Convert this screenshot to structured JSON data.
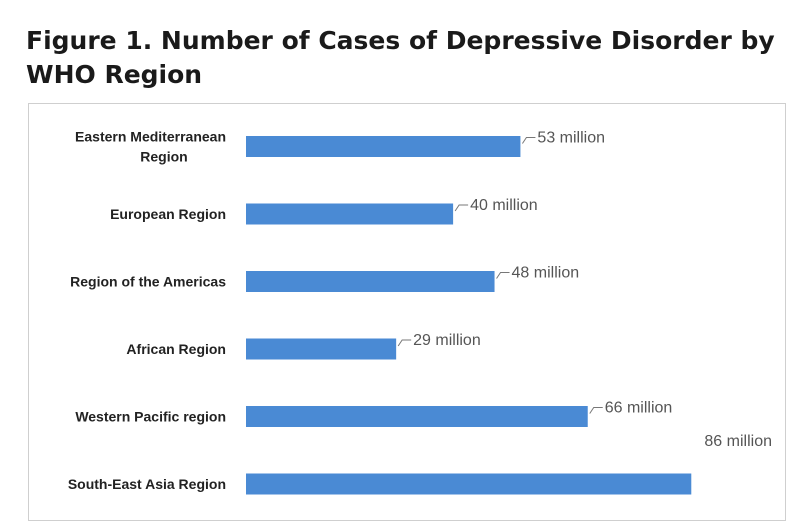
{
  "chart_data": {
    "type": "bar",
    "orientation": "horizontal",
    "title": "Figure 1. Number of Cases of Depressive Disorder by WHO Region",
    "xlabel": "",
    "ylabel": "",
    "xlim": [
      0,
      90
    ],
    "grid": false,
    "legend": "none",
    "unit": "million",
    "bar_color": "#4a8ad4",
    "categories": [
      [
        "Eastern Mediterranean",
        "Region"
      ],
      [
        "European Region"
      ],
      [
        "Region of the Americas"
      ],
      [
        "African Region"
      ],
      [
        "Western Pacific region"
      ],
      [
        "South-East Asia Region"
      ]
    ],
    "values": [
      53,
      40,
      48,
      29,
      66,
      86
    ],
    "data_labels": [
      "53 million",
      "40 million",
      "48 million",
      "29 million",
      "66 million",
      "86 million"
    ]
  }
}
